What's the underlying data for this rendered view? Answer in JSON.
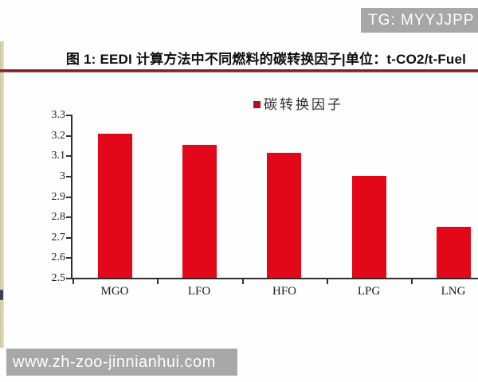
{
  "page": {
    "tg_badge": "TG: MYYJJPP",
    "site_badge": "www.zh-zoo-jinnianhui.com",
    "figure_title": "图 1: EEDI 计算方法中不同燃料的碳转换因子|单位：t-CO2/t-Fuel"
  },
  "colors": {
    "bar": "#e2081a",
    "legend_swatch": "#b01120",
    "axis": "#2f2f2f",
    "divider": "#7c2730",
    "badge_bg": "#a7a7a7",
    "strip": "#ded6ae"
  },
  "chart_data": {
    "type": "bar",
    "title": "图1: EEDI 计算方法中不同燃料的碳转换因子",
    "unit": "t-CO2/t-Fuel",
    "legend": [
      "碳转换因子"
    ],
    "legend_position": "top-center",
    "categories": [
      "MGO",
      "LFO",
      "HFO",
      "LPG",
      "LNG"
    ],
    "values": [
      3.206,
      3.151,
      3.114,
      3.0,
      2.75
    ],
    "xlabel": "",
    "ylabel": "",
    "ylim": [
      2.5,
      3.3
    ],
    "ytick_step": 0.1,
    "ytick_labels": [
      "3.3",
      "3.2",
      "3.1",
      "3",
      "2.9",
      "2.8",
      "2.7",
      "2.6",
      "2.5"
    ],
    "grid": false
  }
}
